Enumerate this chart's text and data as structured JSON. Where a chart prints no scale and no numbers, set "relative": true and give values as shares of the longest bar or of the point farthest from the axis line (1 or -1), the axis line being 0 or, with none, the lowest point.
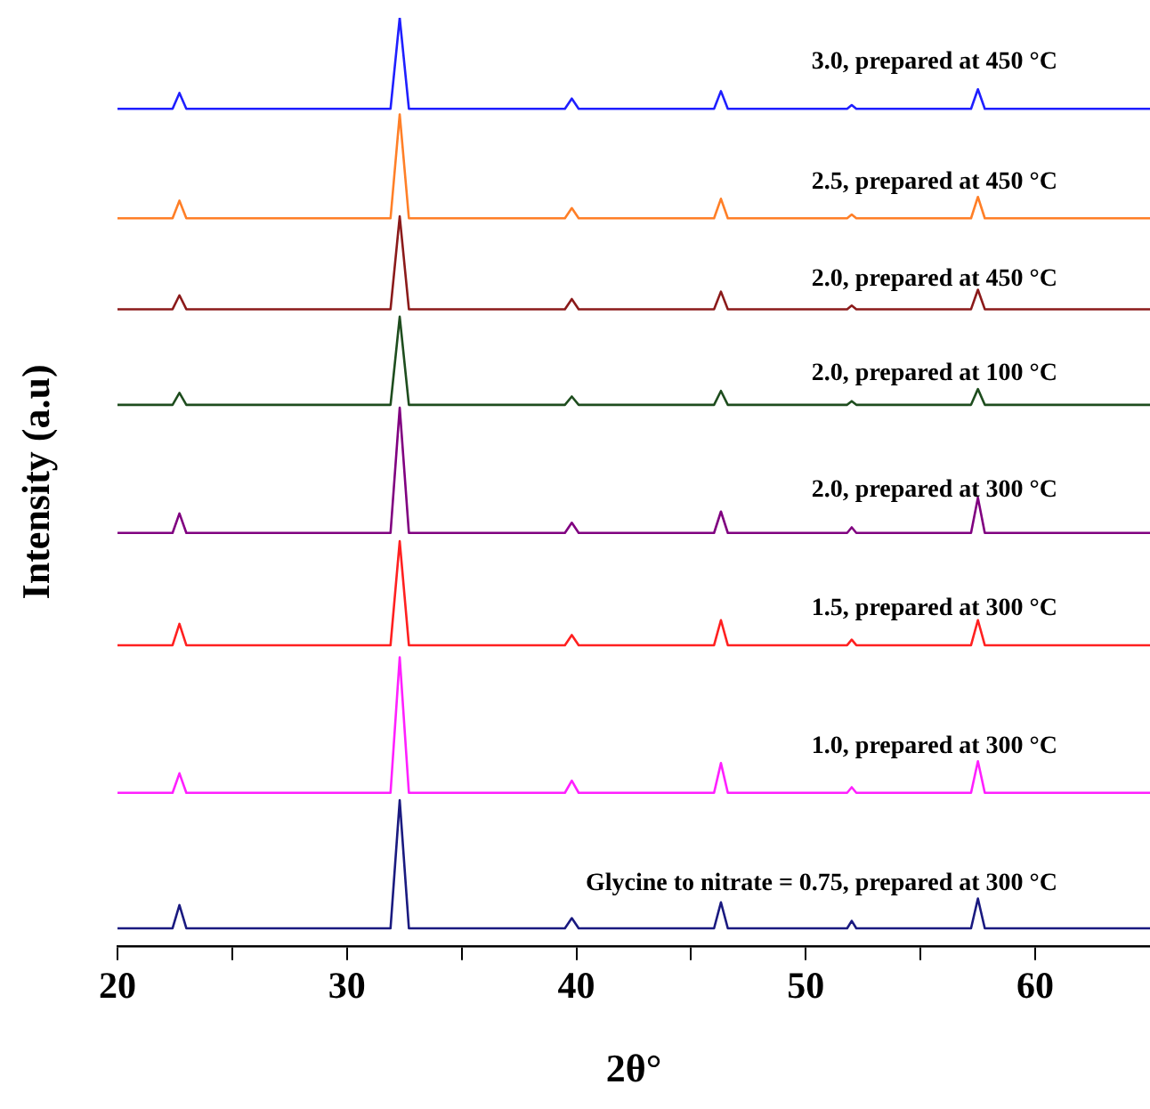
{
  "chart_data": {
    "type": "line",
    "xlabel": "2θ°",
    "ylabel": "Intensity (a.u)",
    "relative": true,
    "grid": false,
    "legend": false,
    "marker": "none",
    "line_style": "solid",
    "x": [
      20,
      22.4,
      22.7,
      23.0,
      27,
      31.9,
      32.3,
      32.7,
      37,
      39.5,
      39.8,
      40.1,
      43,
      46.0,
      46.3,
      46.6,
      49,
      51.8,
      52,
      52.2,
      55,
      57.2,
      57.5,
      57.8,
      61,
      65
    ],
    "xlim": [
      20,
      65
    ],
    "xticks": [
      20,
      {
        "value": 25,
        "label": null
      },
      30,
      {
        "value": 35,
        "label": null
      },
      40,
      {
        "value": 45,
        "label": null
      },
      50,
      {
        "value": 55,
        "label": null
      },
      60
    ],
    "series": [
      {
        "name": "3.0, prepared at 450 °C",
        "color": "#1f1fff",
        "values": [
          0.902,
          0.902,
          0.919,
          0.902,
          0.902,
          0.902,
          1.0,
          0.902,
          0.902,
          0.902,
          0.913,
          0.902,
          0.902,
          0.902,
          0.921,
          0.902,
          0.902,
          0.902,
          0.906,
          0.902,
          0.902,
          0.902,
          0.923,
          0.902,
          0.902,
          0.902
        ]
      },
      {
        "name": "2.5, prepared at 450 °C",
        "color": "#ff7f27",
        "values": [
          0.784,
          0.784,
          0.803,
          0.784,
          0.784,
          0.784,
          0.896,
          0.784,
          0.784,
          0.784,
          0.795,
          0.784,
          0.784,
          0.784,
          0.805,
          0.784,
          0.784,
          0.784,
          0.788,
          0.784,
          0.784,
          0.784,
          0.807,
          0.784,
          0.784,
          0.784
        ]
      },
      {
        "name": "2.0, prepared at 450 °C",
        "color": "#8b1a1a",
        "values": [
          0.686,
          0.686,
          0.701,
          0.686,
          0.686,
          0.686,
          0.786,
          0.686,
          0.686,
          0.686,
          0.697,
          0.686,
          0.686,
          0.686,
          0.705,
          0.686,
          0.686,
          0.686,
          0.69,
          0.686,
          0.686,
          0.686,
          0.707,
          0.686,
          0.686,
          0.686
        ]
      },
      {
        "name": "2.0, prepared at 100 °C",
        "color": "#1e4d1e",
        "values": [
          0.583,
          0.583,
          0.596,
          0.583,
          0.583,
          0.583,
          0.678,
          0.583,
          0.583,
          0.583,
          0.592,
          0.583,
          0.583,
          0.583,
          0.598,
          0.583,
          0.583,
          0.583,
          0.587,
          0.583,
          0.583,
          0.583,
          0.6,
          0.583,
          0.583,
          0.583
        ]
      },
      {
        "name": "2.0, prepared at 300 °C",
        "color": "#800080",
        "values": [
          0.445,
          0.445,
          0.466,
          0.445,
          0.445,
          0.445,
          0.58,
          0.445,
          0.445,
          0.445,
          0.456,
          0.445,
          0.445,
          0.445,
          0.468,
          0.445,
          0.445,
          0.445,
          0.451,
          0.445,
          0.445,
          0.445,
          0.483,
          0.445,
          0.445,
          0.445
        ]
      },
      {
        "name": "1.5, prepared at 300 °C",
        "color": "#ff2020",
        "values": [
          0.324,
          0.324,
          0.347,
          0.324,
          0.324,
          0.324,
          0.436,
          0.324,
          0.324,
          0.324,
          0.335,
          0.324,
          0.324,
          0.324,
          0.351,
          0.324,
          0.324,
          0.324,
          0.33,
          0.324,
          0.324,
          0.324,
          0.351,
          0.324,
          0.324,
          0.324
        ]
      },
      {
        "name": "1.0, prepared at 300 °C",
        "color": "#ff20ff",
        "values": [
          0.165,
          0.165,
          0.186,
          0.165,
          0.165,
          0.165,
          0.311,
          0.165,
          0.165,
          0.165,
          0.178,
          0.165,
          0.165,
          0.165,
          0.197,
          0.165,
          0.165,
          0.165,
          0.171,
          0.165,
          0.165,
          0.165,
          0.199,
          0.165,
          0.165,
          0.165
        ]
      },
      {
        "name": "Glycine to nitrate = 0.75, prepared at 300 °C",
        "color": "#1a1a80",
        "values": [
          0.019,
          0.019,
          0.044,
          0.019,
          0.019,
          0.019,
          0.157,
          0.019,
          0.019,
          0.019,
          0.03,
          0.019,
          0.019,
          0.019,
          0.047,
          0.019,
          0.019,
          0.019,
          0.027,
          0.019,
          0.019,
          0.019,
          0.051,
          0.019,
          0.019,
          0.019
        ]
      }
    ]
  }
}
